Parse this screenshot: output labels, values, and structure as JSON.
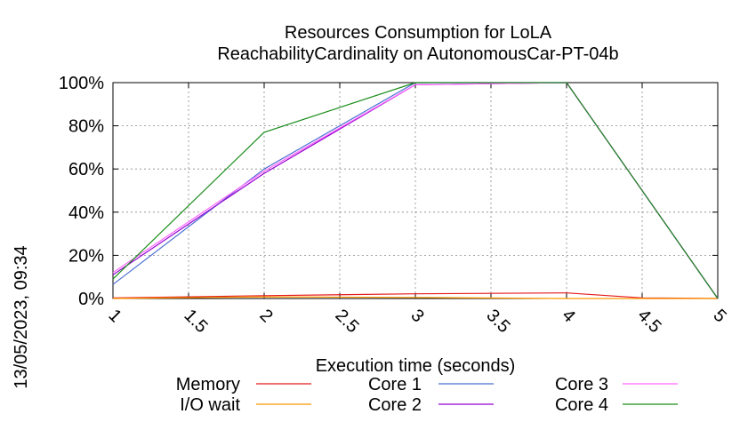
{
  "chart_data": {
    "type": "line",
    "title": "Resources Consumption for LoLA",
    "subtitle": "ReachabilityCardinality on AutonomousCar-PT-04b",
    "xlabel": "Execution time (seconds)",
    "ylabel": "",
    "side_label": "13/05/2023, 09:34",
    "xlim": [
      1,
      5
    ],
    "ylim": [
      0,
      100
    ],
    "x_ticks": [
      "1",
      "1.5",
      "2",
      "2.5",
      "3",
      "3.5",
      "4",
      "4.5",
      "5"
    ],
    "y_ticks": [
      "0%",
      "20%",
      "40%",
      "60%",
      "80%",
      "100%"
    ],
    "grid": true,
    "legend_position": "bottom",
    "series": [
      {
        "name": "Memory",
        "color": "#e41a1c",
        "x": [
          1,
          2,
          3,
          4,
          4.5,
          5
        ],
        "y": [
          0.3,
          1.3,
          2.2,
          2.6,
          0.3,
          0
        ]
      },
      {
        "name": "I/O wait",
        "color": "#ff9900",
        "x": [
          1,
          2,
          3,
          4,
          5
        ],
        "y": [
          0,
          0.8,
          0.5,
          0,
          0
        ]
      },
      {
        "name": "Core 1",
        "color": "#4a6fd1",
        "x": [
          1,
          2,
          3,
          4,
          5
        ],
        "y": [
          6.5,
          60,
          100,
          100,
          0
        ]
      },
      {
        "name": "Core 2",
        "color": "#9400d3",
        "x": [
          1,
          2,
          3,
          4,
          5
        ],
        "y": [
          11,
          58,
          99,
          100,
          0
        ]
      },
      {
        "name": "Core 3",
        "color": "#ff66ff",
        "x": [
          1,
          2,
          3,
          4,
          5
        ],
        "y": [
          12,
          59,
          99,
          100,
          0
        ]
      },
      {
        "name": "Core 4",
        "color": "#1a8c1a",
        "x": [
          1,
          2,
          3,
          4,
          5
        ],
        "y": [
          9,
          77,
          100,
          100,
          0
        ]
      }
    ]
  }
}
